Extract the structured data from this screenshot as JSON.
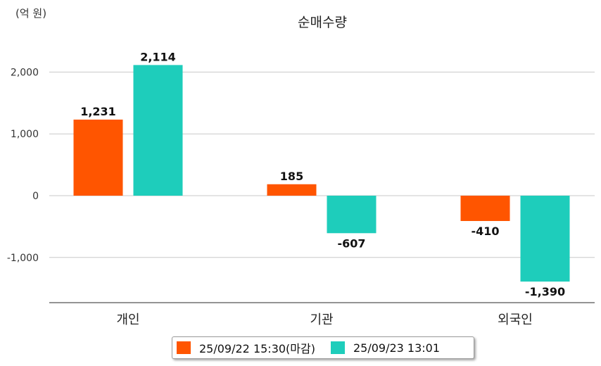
{
  "chart_data": {
    "type": "bar",
    "title": "순매수량",
    "unit_label": "(억 원)",
    "categories": [
      "개인",
      "기관",
      "외국인"
    ],
    "series": [
      {
        "name": "25/09/22 15:30(마감)",
        "color": "#ff5500",
        "values": [
          1231,
          185,
          -410
        ],
        "labels": [
          "1,231",
          "185",
          "-410"
        ]
      },
      {
        "name": "25/09/23 13:01",
        "color": "#1ecdbb",
        "values": [
          2114,
          -607,
          -1390
        ],
        "labels": [
          "2,114",
          "-607",
          "-1,390"
        ]
      }
    ],
    "yticks": [
      2000,
      1000,
      0,
      -1000
    ],
    "ytick_labels": [
      "2,000",
      "1,000",
      "0",
      "-1,000"
    ],
    "ylim": [
      -1700,
      2400
    ],
    "grid": true,
    "legend_position": "bottom"
  }
}
